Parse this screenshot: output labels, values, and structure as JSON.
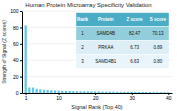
{
  "chart_data": {
    "type": "bar",
    "title": "Human Protein Microarray Specificity Validation",
    "xlabel": "Signal Rank (Top 40)",
    "ylabel": "Strength of Signal (Z scores)",
    "x": [
      1,
      2,
      3,
      4,
      5,
      6,
      7,
      8,
      9,
      10,
      11,
      12,
      13,
      14,
      15,
      16,
      17,
      18,
      19,
      20,
      21,
      22,
      23,
      24,
      25,
      26,
      27,
      28,
      29,
      30,
      31,
      32,
      33,
      34,
      35,
      36,
      37,
      38,
      39,
      40
    ],
    "values": [
      82.47,
      6.73,
      6.63,
      5.2,
      4.5,
      4.0,
      3.7,
      3.4,
      3.1,
      2.9,
      2.7,
      2.5,
      2.4,
      2.3,
      2.2,
      2.1,
      2.0,
      1.95,
      1.9,
      1.85,
      1.8,
      1.75,
      1.7,
      1.65,
      1.6,
      1.55,
      1.5,
      1.45,
      1.4,
      1.35,
      1.3,
      1.25,
      1.2,
      1.15,
      1.1,
      1.05,
      1.0,
      0.95,
      0.9,
      0.85
    ],
    "color": "#5bc8e8",
    "xlim": [
      0,
      41
    ],
    "xticks": [
      1,
      10,
      20,
      30,
      40
    ],
    "ylim": [
      0,
      100
    ],
    "yticks": [
      0,
      20,
      40,
      60,
      80,
      100
    ],
    "grid": true,
    "table": {
      "headers": [
        "Rank",
        "Protein",
        "Z score",
        "S score"
      ],
      "rows": [
        [
          "1",
          "SAMD4B",
          "82.47",
          "70.13"
        ],
        [
          "2",
          "PRKAA",
          "6.73",
          "0.89"
        ],
        [
          "3",
          "SAMD4B1",
          "6.63",
          "0.80"
        ]
      ]
    }
  }
}
